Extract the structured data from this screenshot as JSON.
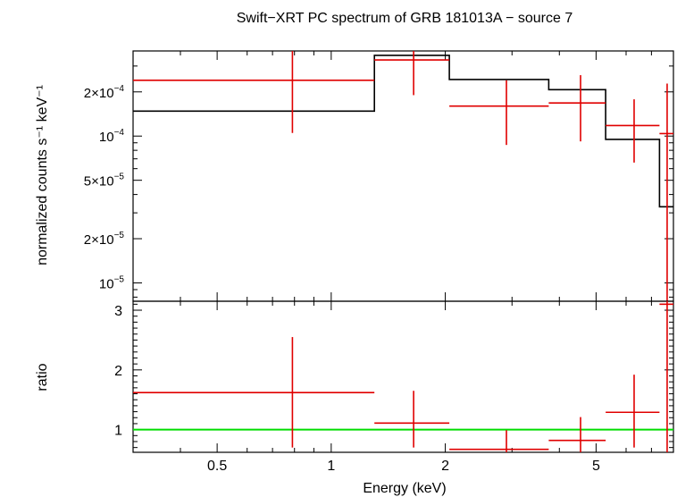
{
  "chart_data": {
    "type": "line",
    "title": "Swift−XRT PC spectrum of GRB 181013A − source 7",
    "xlabel": "Energy (keV)",
    "xscale": "log",
    "xlim": [
      0.3,
      8.0
    ],
    "xticks": [
      {
        "value": 0.5,
        "label": "0.5"
      },
      {
        "value": 1,
        "label": "1"
      },
      {
        "value": 2,
        "label": "2"
      },
      {
        "value": 5,
        "label": "5"
      }
    ],
    "panels": [
      {
        "id": "spectrum",
        "ylabel": "normalized counts s⁻¹ keV⁻¹",
        "yscale": "log",
        "ylim": [
          7.5e-06,
          0.00038
        ],
        "yticks": [
          {
            "value": 1e-05,
            "mant": "10",
            "exp": "−5"
          },
          {
            "value": 2e-05,
            "mant": "2×10",
            "exp": "−5"
          },
          {
            "value": 5e-05,
            "mant": "5×10",
            "exp": "−5"
          },
          {
            "value": 0.0001,
            "mant": "10",
            "exp": "−4"
          },
          {
            "value": 0.0002,
            "mant": "2×10",
            "exp": "−4"
          }
        ],
        "data": [
          {
            "x_lo": 0.3,
            "x_hi": 1.3,
            "x": 0.79,
            "y": 0.00024,
            "y_lo": 0.000105,
            "y_hi": 0.00038
          },
          {
            "x_lo": 1.3,
            "x_hi": 2.05,
            "x": 1.65,
            "y": 0.00033,
            "y_lo": 0.00019,
            "y_hi": 0.00038
          },
          {
            "x_lo": 2.05,
            "x_hi": 3.75,
            "x": 2.9,
            "y": 0.00016,
            "y_lo": 8.7e-05,
            "y_hi": 0.00024
          },
          {
            "x_lo": 3.75,
            "x_hi": 5.3,
            "x": 4.55,
            "y": 0.000168,
            "y_lo": 9.2e-05,
            "y_hi": 0.00026
          },
          {
            "x_lo": 5.3,
            "x_hi": 7.35,
            "x": 6.3,
            "y": 0.000118,
            "y_lo": 6.6e-05,
            "y_hi": 0.000178
          },
          {
            "x_lo": 7.35,
            "x_hi": 8.0,
            "x": 7.7,
            "y": 0.000104,
            "y_lo": 7.5e-06,
            "y_hi": 0.000228
          }
        ],
        "model": [
          {
            "x_lo": 0.3,
            "x_hi": 1.3,
            "y": 0.000148
          },
          {
            "x_lo": 1.3,
            "x_hi": 2.05,
            "y": 0.000355
          },
          {
            "x_lo": 2.05,
            "x_hi": 3.75,
            "y": 0.000243
          },
          {
            "x_lo": 3.75,
            "x_hi": 5.3,
            "y": 0.000207
          },
          {
            "x_lo": 5.3,
            "x_hi": 7.35,
            "y": 9.5e-05
          },
          {
            "x_lo": 7.35,
            "x_hi": 8.0,
            "y": 3.3e-05
          }
        ]
      },
      {
        "id": "ratio",
        "ylabel": "ratio",
        "yscale": "linear",
        "ylim": [
          0.62,
          3.15
        ],
        "yticks": [
          {
            "value": 1,
            "label": "1"
          },
          {
            "value": 2,
            "label": "2"
          },
          {
            "value": 3,
            "label": "3"
          }
        ],
        "reference_line": 1,
        "data": [
          {
            "x_lo": 0.3,
            "x_hi": 1.3,
            "x": 0.79,
            "y": 1.62,
            "y_lo": 0.7,
            "y_hi": 2.55
          },
          {
            "x_lo": 1.3,
            "x_hi": 2.05,
            "x": 1.65,
            "y": 1.11,
            "y_lo": 0.7,
            "y_hi": 1.65
          },
          {
            "x_lo": 2.05,
            "x_hi": 3.75,
            "x": 2.9,
            "y": 0.67,
            "y_lo": 0.62,
            "y_hi": 0.99
          },
          {
            "x_lo": 3.75,
            "x_hi": 5.3,
            "x": 4.55,
            "y": 0.82,
            "y_lo": 0.62,
            "y_hi": 1.21
          },
          {
            "x_lo": 5.3,
            "x_hi": 7.35,
            "x": 6.3,
            "y": 1.29,
            "y_lo": 0.7,
            "y_hi": 1.92
          },
          {
            "x_lo": 7.35,
            "x_hi": 8.0,
            "x": 7.7,
            "y": 3.1,
            "y_lo": 0.62,
            "y_hi": 3.15
          }
        ]
      }
    ],
    "colors": {
      "data": "#e00000",
      "model": "#000000",
      "reference": "#00dd00",
      "axes": "#000000"
    }
  }
}
